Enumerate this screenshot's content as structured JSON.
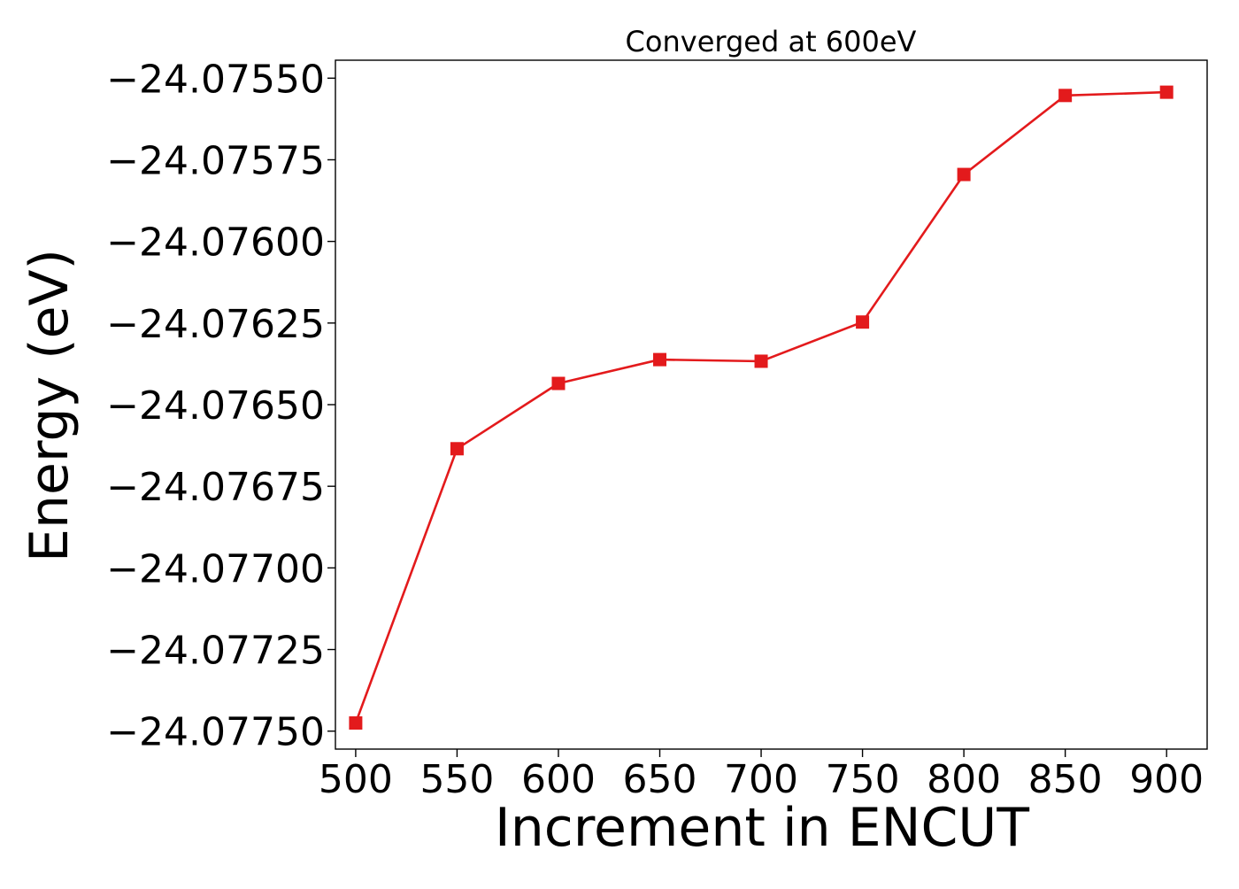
{
  "chart_data": {
    "type": "line",
    "title": "Converged at 600eV",
    "xlabel": "Increment in ENCUT",
    "ylabel": "Energy (eV)",
    "xlim": [
      490,
      920
    ],
    "ylim": [
      -24.077555,
      -24.075445
    ],
    "x_ticks": [
      500,
      550,
      600,
      650,
      700,
      750,
      800,
      850,
      900
    ],
    "x_tick_labels": [
      "500",
      "550",
      "600",
      "650",
      "700",
      "750",
      "800",
      "850",
      "900"
    ],
    "y_ticks": [
      -24.0755,
      -24.07575,
      -24.076,
      -24.07625,
      -24.0765,
      -24.07675,
      -24.077,
      -24.07725,
      -24.0775
    ],
    "y_tick_labels": [
      "−24.07550",
      "−24.07575",
      "−24.07600",
      "−24.07625",
      "−24.07650",
      "−24.07675",
      "−24.07700",
      "−24.07725",
      "−24.07750"
    ],
    "grid": false,
    "series": [
      {
        "color": "#e31a1c",
        "marker": "square",
        "x": [
          500,
          550,
          600,
          650,
          700,
          750,
          800,
          850,
          900
        ],
        "y": [
          -24.077475,
          -24.076635,
          -24.076435,
          -24.076362,
          -24.076367,
          -24.076247,
          -24.075795,
          -24.075553,
          -24.075543
        ]
      }
    ]
  }
}
